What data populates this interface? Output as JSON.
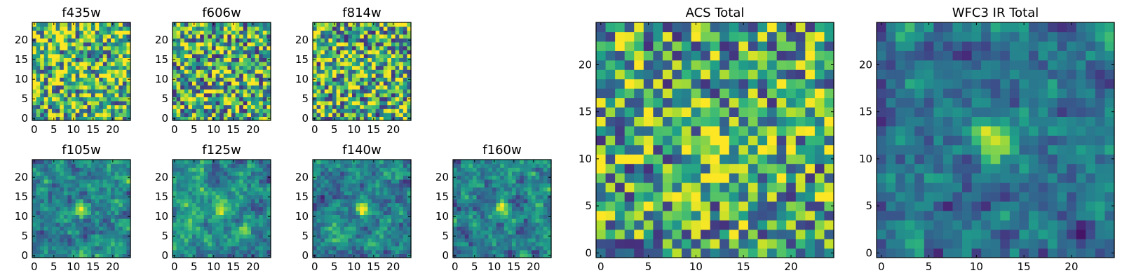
{
  "chart_data": [
    {
      "type": "heatmap",
      "title": "f435w",
      "x_ticks": [
        "0",
        "5",
        "10",
        "15",
        "20"
      ],
      "y_ticks": [
        "0",
        "5",
        "10",
        "15",
        "20"
      ],
      "xlim": [
        0,
        25
      ],
      "ylim": [
        0,
        25
      ],
      "colormap": "viridis",
      "grid": false,
      "source_x": 12,
      "source_y": 11,
      "source_strength": 0.0,
      "noise": 0.5,
      "base": 0.68,
      "smooth": false,
      "seed": 11
    },
    {
      "type": "heatmap",
      "title": "f606w",
      "x_ticks": [
        "0",
        "5",
        "10",
        "15",
        "20"
      ],
      "y_ticks": [
        "0",
        "5",
        "10",
        "15",
        "20"
      ],
      "xlim": [
        0,
        25
      ],
      "ylim": [
        0,
        25
      ],
      "colormap": "viridis",
      "grid": false,
      "source_x": 12,
      "source_y": 12,
      "source_strength": 0.3,
      "noise": 0.5,
      "base": 0.62,
      "smooth": false,
      "seed": 23
    },
    {
      "type": "heatmap",
      "title": "f814w",
      "x_ticks": [
        "0",
        "5",
        "10",
        "15",
        "20"
      ],
      "y_ticks": [
        "0",
        "5",
        "10",
        "15",
        "20"
      ],
      "xlim": [
        0,
        25
      ],
      "ylim": [
        0,
        25
      ],
      "colormap": "viridis",
      "grid": false,
      "source_x": 12,
      "source_y": 12,
      "source_strength": 0.3,
      "noise": 0.5,
      "base": 0.62,
      "smooth": false,
      "seed": 37
    },
    {
      "type": "heatmap",
      "title": "f105w",
      "x_ticks": [
        "0",
        "5",
        "10",
        "15",
        "20"
      ],
      "y_ticks": [
        "0",
        "5",
        "10",
        "15",
        "20"
      ],
      "xlim": [
        0,
        25
      ],
      "ylim": [
        0,
        25
      ],
      "colormap": "viridis",
      "grid": false,
      "source_x": 12,
      "source_y": 12,
      "source_strength": 0.55,
      "noise": 0.45,
      "base": 0.45,
      "smooth": true,
      "seed": 41
    },
    {
      "type": "heatmap",
      "title": "f125w",
      "x_ticks": [
        "0",
        "5",
        "10",
        "15",
        "20"
      ],
      "y_ticks": [
        "0",
        "5",
        "10",
        "15",
        "20"
      ],
      "xlim": [
        0,
        25
      ],
      "ylim": [
        0,
        25
      ],
      "colormap": "viridis",
      "grid": false,
      "source_x": 12,
      "source_y": 12,
      "source_strength": 0.45,
      "noise": 0.45,
      "base": 0.5,
      "smooth": true,
      "seed": 53
    },
    {
      "type": "heatmap",
      "title": "f140w",
      "x_ticks": [
        "0",
        "5",
        "10",
        "15",
        "20"
      ],
      "y_ticks": [
        "0",
        "5",
        "10",
        "15",
        "20"
      ],
      "xlim": [
        0,
        25
      ],
      "ylim": [
        0,
        25
      ],
      "colormap": "viridis",
      "grid": false,
      "source_x": 12,
      "source_y": 12,
      "source_strength": 0.5,
      "noise": 0.45,
      "base": 0.45,
      "smooth": true,
      "seed": 67
    },
    {
      "type": "heatmap",
      "title": "f160w",
      "x_ticks": [
        "0",
        "5",
        "10",
        "15",
        "20"
      ],
      "y_ticks": [
        "0",
        "5",
        "10",
        "15",
        "20"
      ],
      "xlim": [
        0,
        25
      ],
      "ylim": [
        0,
        25
      ],
      "colormap": "viridis",
      "grid": false,
      "source_x": 12,
      "source_y": 12,
      "source_strength": 0.5,
      "noise": 0.45,
      "base": 0.45,
      "smooth": true,
      "seed": 79
    },
    {
      "type": "heatmap",
      "title": "ACS Total",
      "x_ticks": [
        "0",
        "5",
        "10",
        "15",
        "20"
      ],
      "y_ticks": [
        "0",
        "5",
        "10",
        "15",
        "20"
      ],
      "xlim": [
        0,
        25
      ],
      "ylim": [
        0,
        25
      ],
      "colormap": "viridis",
      "grid": false,
      "source_x": 12,
      "source_y": 11,
      "source_strength": 0.5,
      "noise": 0.45,
      "base": 0.58,
      "smooth": false,
      "seed": 97
    },
    {
      "type": "heatmap",
      "title": "WFC3 IR Total",
      "x_ticks": [
        "0",
        "5",
        "10",
        "15",
        "20"
      ],
      "y_ticks": [
        "0",
        "5",
        "10",
        "15",
        "20"
      ],
      "xlim": [
        0,
        25
      ],
      "ylim": [
        0,
        25
      ],
      "colormap": "viridis",
      "grid": false,
      "source_x": 12,
      "source_y": 12,
      "source_strength": 0.65,
      "noise": 0.4,
      "base": 0.38,
      "smooth": true,
      "seed": 113
    }
  ]
}
